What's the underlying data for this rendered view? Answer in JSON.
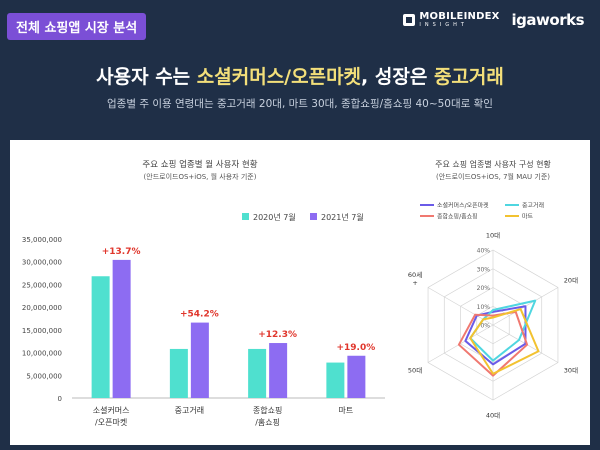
{
  "header": {
    "tag": "전체 쇼핑앱 시장 분석",
    "brand_main": "MOBILEINDEX",
    "brand_sub": "INSIGHT",
    "brand_iga": "igaworks"
  },
  "headline": {
    "part1": "사용자 수는 ",
    "highlight1": "소셜커머스/오픈마켓",
    "part2": ", 성장은 ",
    "highlight2": "중고거래"
  },
  "subheadline": "업종별 주 이용 연령대는 중고거래 20대, 마트 30대, 종합쇼핑/홈쇼핑 40~50대로 확인",
  "colors": {
    "accent_purple": "#7b4fd6",
    "highlight_yellow": "#f3df7a",
    "bg": "#1f2f47"
  },
  "chart_data": [
    {
      "type": "bar",
      "title": "주요 쇼핑 업종별 월 사용자 현황",
      "subtitle": "(안드로이드OS+iOS, 월 사용자 기준)",
      "categories": [
        [
          "소셜커머스",
          "/오픈마켓"
        ],
        [
          "중고거래"
        ],
        [
          "종합쇼핑",
          "/홈쇼핑"
        ],
        [
          "마트"
        ]
      ],
      "series": [
        {
          "name": "2020년 7월",
          "color": "#4fe0cf",
          "values": [
            26800000,
            10800000,
            10800000,
            7800000
          ]
        },
        {
          "name": "2021년 7월",
          "color": "#8d6cf2",
          "values": [
            30400000,
            16600000,
            12100000,
            9300000
          ]
        }
      ],
      "growth_labels": [
        "+13.7%",
        "+54.2%",
        "+12.3%",
        "+19.0%"
      ],
      "ylim": [
        0,
        35000000
      ],
      "yticks": [
        "0",
        "5,000,000",
        "10,000,000",
        "15,000,000",
        "20,000,000",
        "25,000,000",
        "30,000,000",
        "35,000,000"
      ],
      "legend_position": "top-right"
    },
    {
      "type": "radar",
      "title": "주요 쇼핑 업종별 사용자 구성 현황",
      "subtitle": "(안드로이드OS+iOS, 7월 MAU 기준)",
      "axes": [
        "10대",
        "20대",
        "30대",
        "40대",
        "50대",
        "60세 +"
      ],
      "rlim": [
        0,
        40
      ],
      "rticks": [
        "0%",
        "10%",
        "20%",
        "30%",
        "40%"
      ],
      "series": [
        {
          "name": "소셜커머스/오픈마켓",
          "color": "#6a5be8",
          "values": [
            7,
            20,
            20,
            21,
            17,
            10
          ]
        },
        {
          "name": "중고거래",
          "color": "#4fd6e0",
          "values": [
            8,
            26,
            16,
            19,
            14,
            6
          ]
        },
        {
          "name": "종합쇼핑/홈쇼핑",
          "color": "#f07870",
          "values": [
            5,
            14,
            21,
            27,
            21,
            11
          ]
        },
        {
          "name": "마트",
          "color": "#f2c230",
          "values": [
            4,
            17,
            28,
            26,
            14,
            6
          ]
        }
      ]
    }
  ]
}
